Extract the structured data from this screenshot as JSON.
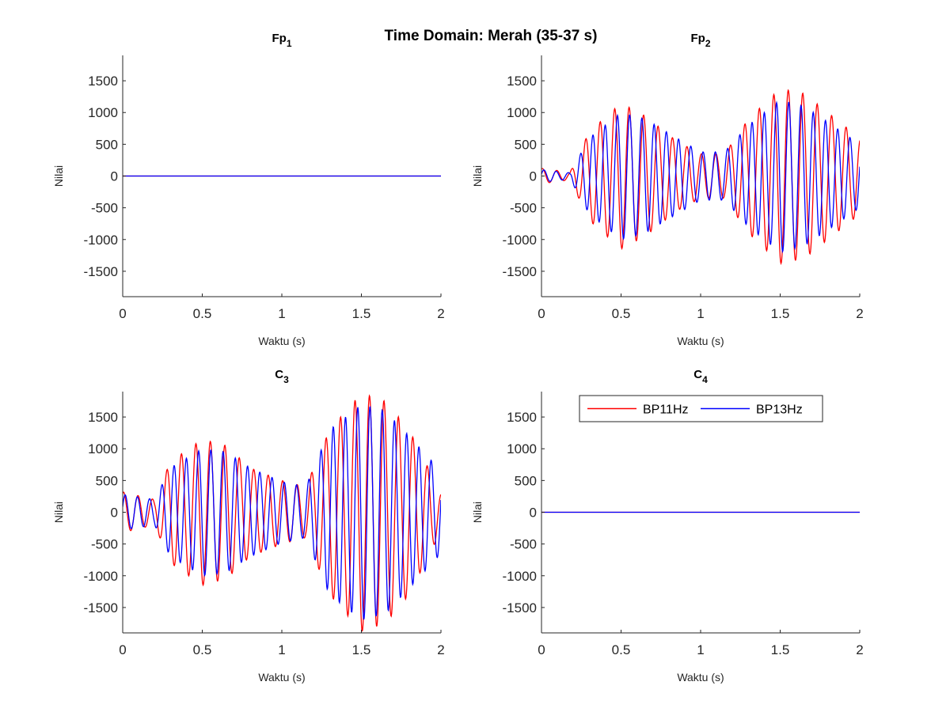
{
  "figure": {
    "title": "Time Domain: Merah (35-37 s)"
  },
  "colors": {
    "red": "#ff0000",
    "blue": "#0000ff",
    "axis": "#262626"
  },
  "chart_data": [
    {
      "type": "line",
      "title_main": "Fp",
      "title_sub": "1",
      "xlabel": "Waktu (s)",
      "ylabel": "Nilai",
      "xlim": [
        0,
        2
      ],
      "ylim": [
        -1900,
        1900
      ],
      "xticks": [
        0,
        0.5,
        1,
        1.5,
        2
      ],
      "xtick_labels": [
        "0",
        "0.5",
        "1",
        "1.5",
        "2"
      ],
      "yticks": [
        -1500,
        -1000,
        -500,
        0,
        500,
        1000,
        1500
      ],
      "ytick_labels": [
        "-1500",
        "-1000",
        "-500",
        "0",
        "500",
        "1000",
        "1500"
      ],
      "series": [
        {
          "color": "#ff0000",
          "envelope": [
            [
              0,
              0
            ],
            [
              2,
              0
            ]
          ],
          "freq_hz": 11,
          "phase": 0
        },
        {
          "color": "#0000ff",
          "envelope": [
            [
              0,
              0
            ],
            [
              2,
              0
            ]
          ],
          "freq_hz": 13,
          "phase": 0
        }
      ]
    },
    {
      "type": "line",
      "title_main": "Fp",
      "title_sub": "2",
      "xlabel": "Waktu (s)",
      "ylabel": "Nilai",
      "xlim": [
        0,
        2
      ],
      "ylim": [
        -1900,
        1900
      ],
      "xticks": [
        0,
        0.5,
        1,
        1.5,
        2
      ],
      "xtick_labels": [
        "0",
        "0.5",
        "1",
        "1.5",
        "2"
      ],
      "yticks": [
        -1500,
        -1000,
        -500,
        0,
        500,
        1000,
        1500
      ],
      "ytick_labels": [
        "-1500",
        "-1000",
        "-500",
        "0",
        "500",
        "1000",
        "1500"
      ],
      "series": [
        {
          "color": "#ff0000",
          "freq_hz": 11,
          "phase": 1.2,
          "envelope": [
            [
              0,
              120
            ],
            [
              0.18,
              60
            ],
            [
              0.3,
              700
            ],
            [
              0.5,
              1150
            ],
            [
              0.65,
              950
            ],
            [
              0.85,
              550
            ],
            [
              1.0,
              350
            ],
            [
              1.15,
              350
            ],
            [
              1.3,
              900
            ],
            [
              1.5,
              1380
            ],
            [
              1.65,
              1300
            ],
            [
              1.8,
              1000
            ],
            [
              2.0,
              600
            ]
          ]
        },
        {
          "color": "#0000ff",
          "freq_hz": 13,
          "phase": 0.3,
          "envelope": [
            [
              0,
              100
            ],
            [
              0.18,
              50
            ],
            [
              0.3,
              600
            ],
            [
              0.5,
              1000
            ],
            [
              0.65,
              900
            ],
            [
              0.85,
              600
            ],
            [
              1.0,
              380
            ],
            [
              1.15,
              380
            ],
            [
              1.3,
              800
            ],
            [
              1.5,
              1200
            ],
            [
              1.65,
              1100
            ],
            [
              1.8,
              850
            ],
            [
              2.0,
              500
            ]
          ]
        }
      ]
    },
    {
      "type": "line",
      "title_main": "C",
      "title_sub": "3",
      "xlabel": "Waktu (s)",
      "ylabel": "Nilai",
      "xlim": [
        0,
        2
      ],
      "ylim": [
        -1900,
        1900
      ],
      "xticks": [
        0,
        0.5,
        1,
        1.5,
        2
      ],
      "xtick_labels": [
        "0",
        "0.5",
        "1",
        "1.5",
        "2"
      ],
      "yticks": [
        -1500,
        -1000,
        -500,
        0,
        500,
        1000,
        1500
      ],
      "ytick_labels": [
        "-1500",
        "-1000",
        "-500",
        "0",
        "500",
        "1000",
        "1500"
      ],
      "series": [
        {
          "color": "#ff0000",
          "freq_hz": 11,
          "phase": 1.2,
          "envelope": [
            [
              0,
              320
            ],
            [
              0.2,
              200
            ],
            [
              0.3,
              800
            ],
            [
              0.5,
              1150
            ],
            [
              0.65,
              1050
            ],
            [
              0.8,
              700
            ],
            [
              1.0,
              500
            ],
            [
              1.15,
              400
            ],
            [
              1.3,
              1300
            ],
            [
              1.5,
              1880
            ],
            [
              1.65,
              1750
            ],
            [
              1.8,
              1300
            ],
            [
              2.0,
              300
            ]
          ]
        },
        {
          "color": "#0000ff",
          "freq_hz": 13,
          "phase": 0.3,
          "envelope": [
            [
              0,
              280
            ],
            [
              0.2,
              200
            ],
            [
              0.3,
              700
            ],
            [
              0.5,
              1000
            ],
            [
              0.65,
              950
            ],
            [
              0.8,
              700
            ],
            [
              1.0,
              480
            ],
            [
              1.15,
              400
            ],
            [
              1.3,
              1300
            ],
            [
              1.5,
              1700
            ],
            [
              1.65,
              1600
            ],
            [
              1.8,
              1200
            ],
            [
              2.0,
              650
            ]
          ]
        }
      ]
    },
    {
      "type": "line",
      "title_main": "C",
      "title_sub": "4",
      "xlabel": "Waktu (s)",
      "ylabel": "Nilai",
      "xlim": [
        0,
        2
      ],
      "ylim": [
        -1900,
        1900
      ],
      "xticks": [
        0,
        0.5,
        1,
        1.5,
        2
      ],
      "xtick_labels": [
        "0",
        "0.5",
        "1",
        "1.5",
        "2"
      ],
      "yticks": [
        -1500,
        -1000,
        -500,
        0,
        500,
        1000,
        1500
      ],
      "ytick_labels": [
        "-1500",
        "-1000",
        "-500",
        "0",
        "500",
        "1000",
        "1500"
      ],
      "legend": {
        "entries": [
          "BP11Hz",
          "BP13Hz"
        ],
        "location": "top-center"
      },
      "series": [
        {
          "color": "#ff0000",
          "envelope": [
            [
              0,
              0
            ],
            [
              2,
              0
            ]
          ],
          "freq_hz": 11,
          "phase": 0
        },
        {
          "color": "#0000ff",
          "envelope": [
            [
              0,
              0
            ],
            [
              2,
              0
            ]
          ],
          "freq_hz": 13,
          "phase": 0
        }
      ]
    }
  ]
}
